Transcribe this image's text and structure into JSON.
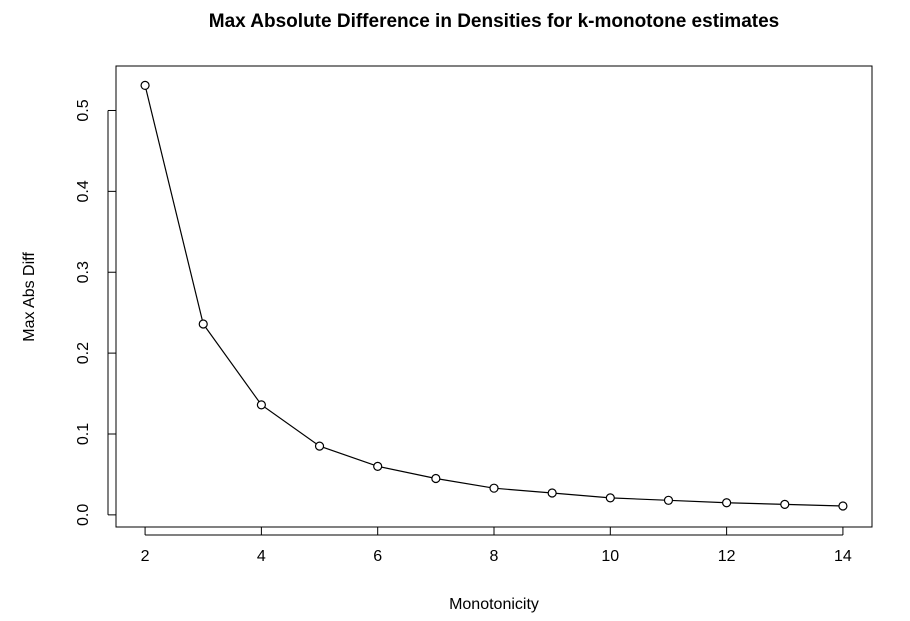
{
  "chart_data": {
    "type": "line",
    "title": "Max Absolute Difference in Densities for k-monotone estimates",
    "x_label": "Monotonicity",
    "y_label": "Max Abs Diff",
    "x": [
      2,
      3,
      4,
      5,
      6,
      7,
      8,
      9,
      10,
      11,
      12,
      13,
      14
    ],
    "series": [
      {
        "name": "Max Abs Diff",
        "color": "#000000",
        "values": [
          0.531,
          0.236,
          0.136,
          0.085,
          0.06,
          0.045,
          0.033,
          0.027,
          0.021,
          0.018,
          0.015,
          0.013,
          0.011
        ]
      }
    ],
    "xlim": [
      1.5,
      14.5
    ],
    "xticks": [
      2,
      4,
      6,
      8,
      10,
      12,
      14
    ],
    "ylim": [
      -0.015,
      0.555
    ],
    "yticks": [
      {
        "value": 0,
        "label": "0.0"
      },
      0.1,
      0.2,
      0.3,
      0.4,
      0.5
    ],
    "grid": false,
    "markers": "open-circle"
  }
}
